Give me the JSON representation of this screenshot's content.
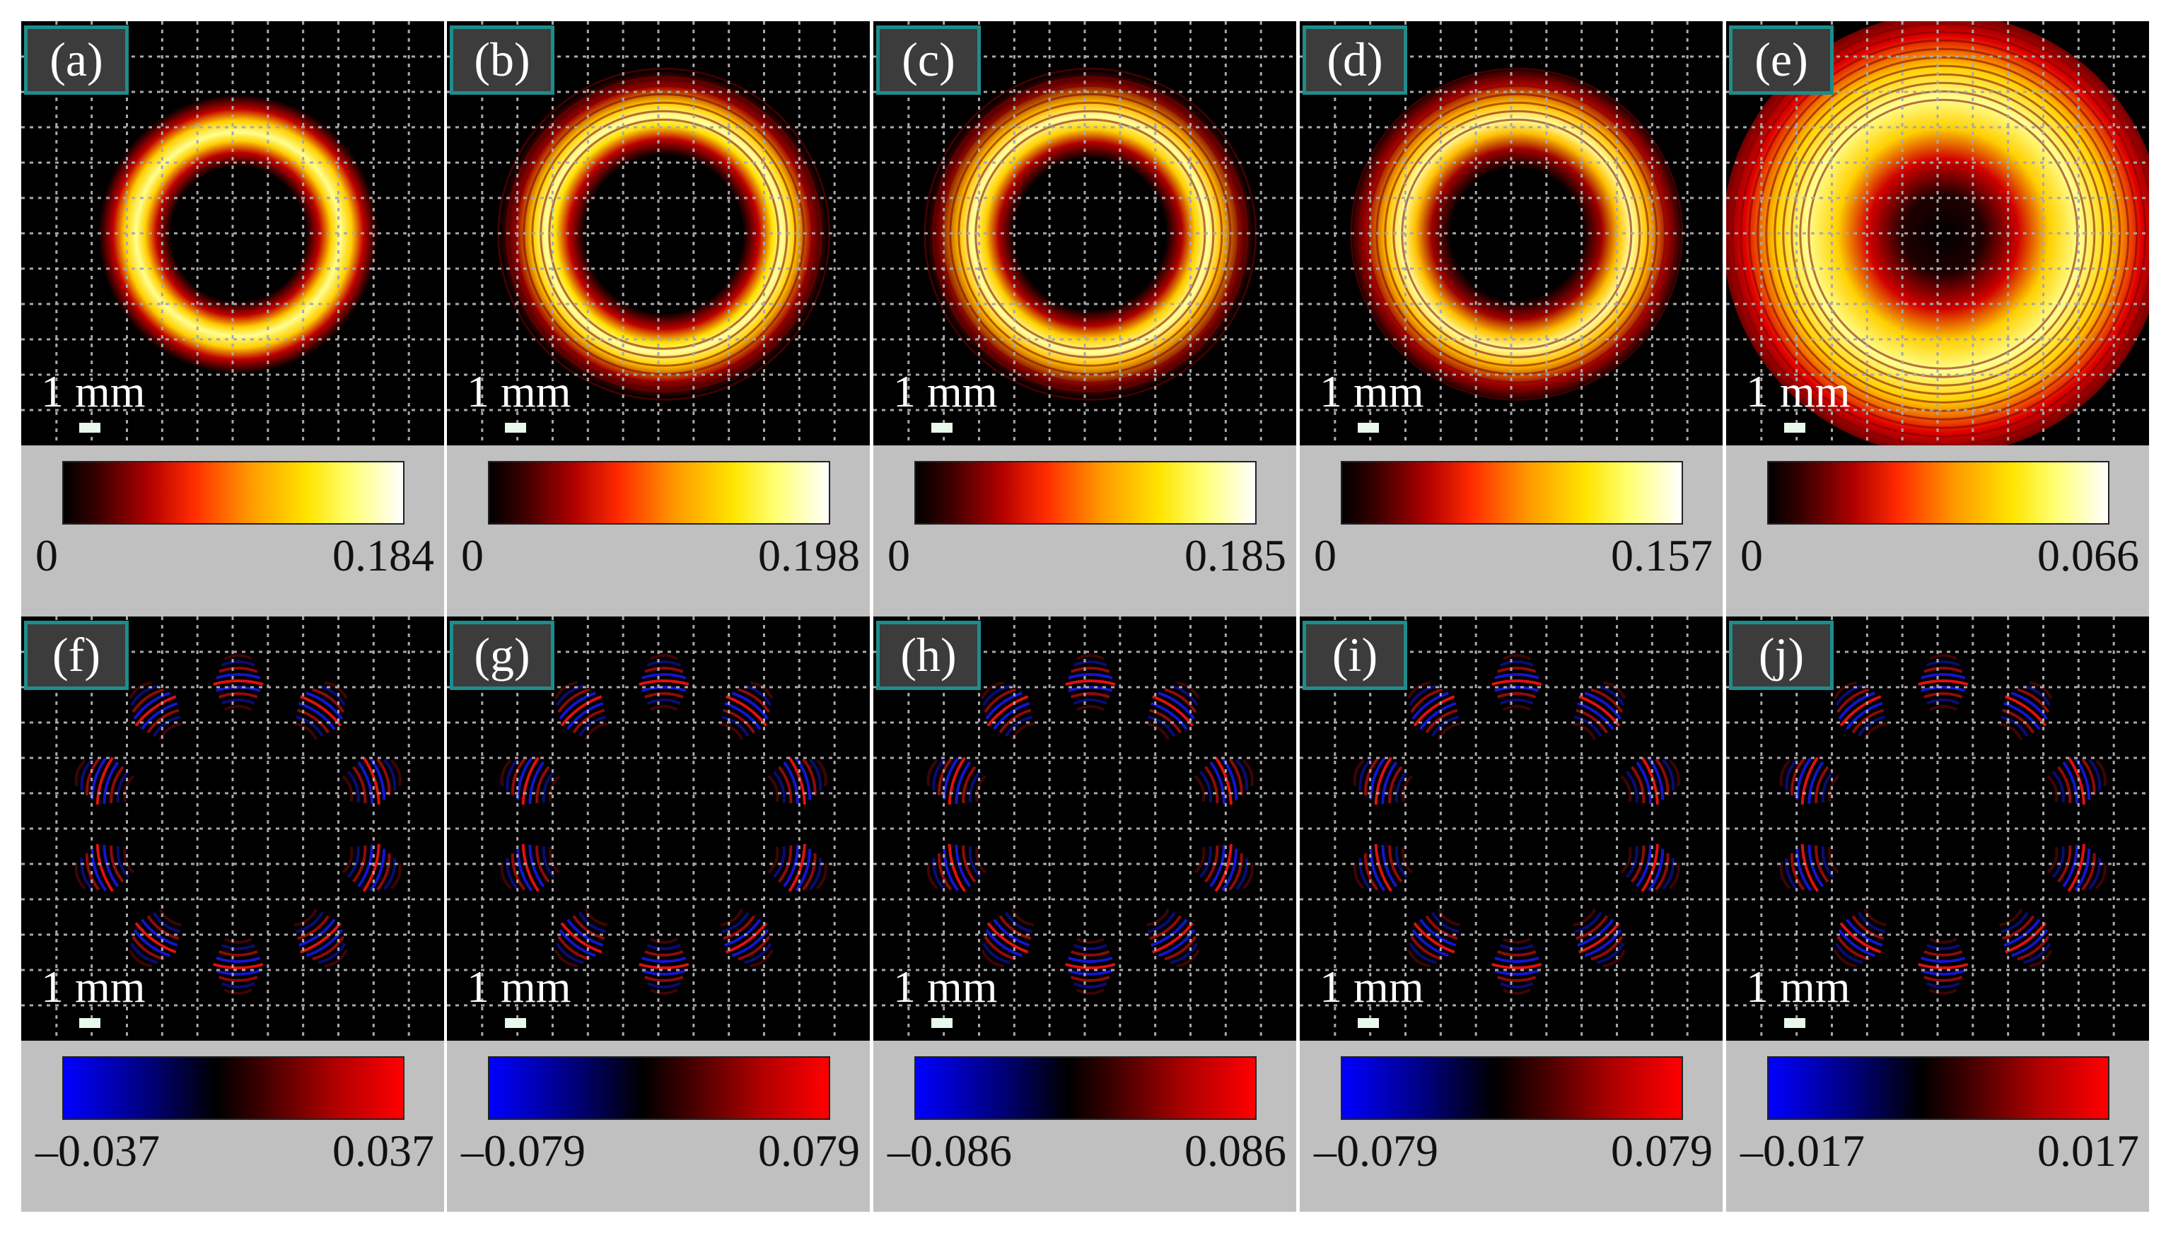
{
  "figure": {
    "scale_label": "1 mm",
    "colormaps": {
      "heat": "black-red-yellow-white",
      "diverging": "blue-black-red"
    },
    "rows": [
      {
        "kind": "intensity",
        "panels": [
          {
            "label": "(a)",
            "cmin": "0",
            "cmax": "0.184"
          },
          {
            "label": "(b)",
            "cmin": "0",
            "cmax": "0.198"
          },
          {
            "label": "(c)",
            "cmin": "0",
            "cmax": "0.185"
          },
          {
            "label": "(d)",
            "cmin": "0",
            "cmax": "0.157"
          },
          {
            "label": "(e)",
            "cmin": "0",
            "cmax": "0.066"
          }
        ]
      },
      {
        "kind": "field",
        "panels": [
          {
            "label": "(f)",
            "cmin": "–0.037",
            "cmax": "0.037"
          },
          {
            "label": "(g)",
            "cmin": "–0.079",
            "cmax": "0.079"
          },
          {
            "label": "(h)",
            "cmin": "–0.086",
            "cmax": "0.086"
          },
          {
            "label": "(i)",
            "cmin": "–0.079",
            "cmax": "0.079"
          },
          {
            "label": "(j)",
            "cmin": "–0.017",
            "cmax": "0.017"
          }
        ]
      }
    ]
  }
}
